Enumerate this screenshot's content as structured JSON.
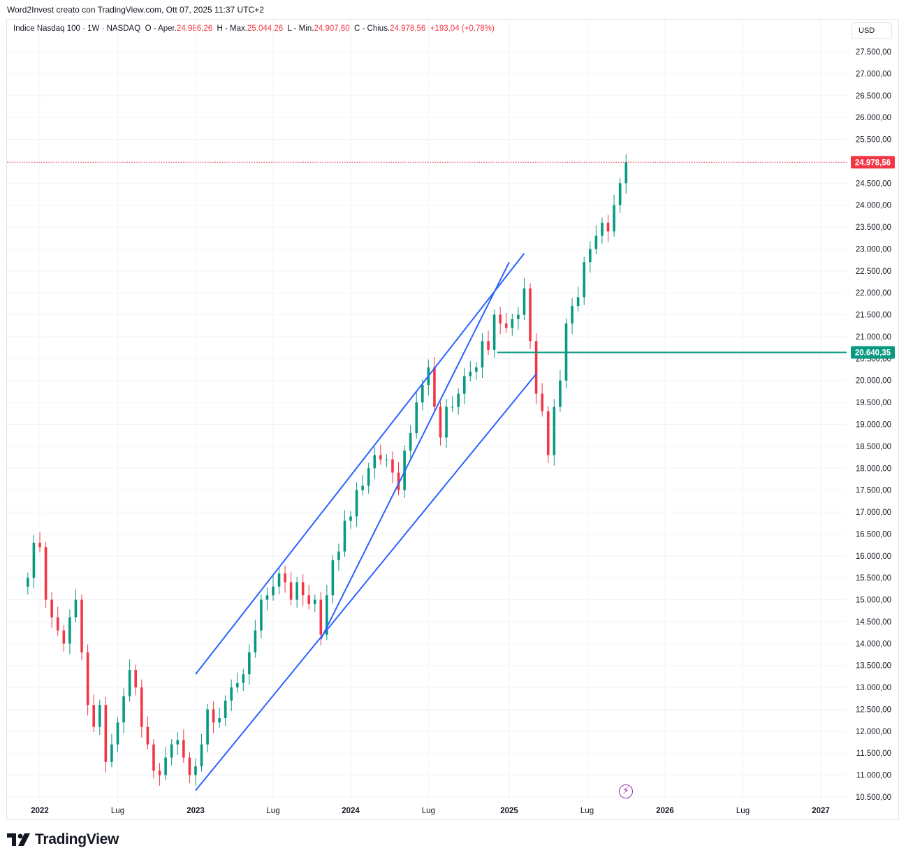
{
  "caption": "Word2Invest creato con TradingView.com, Ott 07, 2025 11:37 UTC+2",
  "legend": {
    "symbol": "Indice Nasdaq 100 · 1W · NASDAQ",
    "open_label": "O - Aper.",
    "open_value": "24.986,26",
    "high_label": "H - Max.",
    "high_value": "25.044,26",
    "low_label": "L - Min.",
    "low_value": "24.907,60",
    "close_label": "C - Chius.",
    "close_value": "24.978,56",
    "change": "+193,04 (+0,78%)"
  },
  "currency": "USD",
  "brand": "TradingView",
  "colors": {
    "up": "#089981",
    "down": "#f23645",
    "trendline": "#2962ff",
    "level": "#089981",
    "grid": "#f0f3fa"
  },
  "chart_data": {
    "type": "candlestick",
    "symbol": "Indice Nasdaq 100",
    "timeframe": "1W",
    "currency": "USD",
    "ylim": [
      10400,
      27800
    ],
    "y_ticks": [
      "10.500,00",
      "11.000,00",
      "11.500,00",
      "12.000,00",
      "12.500,00",
      "13.000,00",
      "13.500,00",
      "14.000,00",
      "14.500,00",
      "15.000,00",
      "15.500,00",
      "16.000,00",
      "16.500,00",
      "17.000,00",
      "17.500,00",
      "18.000,00",
      "18.500,00",
      "19.000,00",
      "19.500,00",
      "20.000,00",
      "20.500,00",
      "21.000,00",
      "21.500,00",
      "22.000,00",
      "22.500,00",
      "23.000,00",
      "23.500,00",
      "24.000,00",
      "24.500,00",
      "25.000,00",
      "25.500,00",
      "26.000,00",
      "26.500,00",
      "27.000,00",
      "27.500,00"
    ],
    "x_ticks": [
      "2022",
      "Lug",
      "2023",
      "Lug",
      "2024",
      "Lug",
      "2025",
      "Lug",
      "2026",
      "Lug",
      "2027"
    ],
    "last_price": {
      "value": 24978.56,
      "label": "24.978,56"
    },
    "horizontal_level": {
      "value": 20640.35,
      "label": "20.640,35",
      "from_date": "2024-12-09"
    },
    "trendlines": [
      {
        "from": [
          "2023-01-02",
          13300
        ],
        "to": [
          "2025-02-10",
          22900
        ]
      },
      {
        "from": [
          "2023-01-02",
          10650
        ],
        "to": [
          "2025-03-10",
          20150
        ]
      },
      {
        "from": [
          "2023-10-23",
          14100
        ],
        "to": [
          "2025-01-06",
          22700
        ]
      }
    ],
    "candles_weekly_close_approx": [
      [
        "2021-12-06",
        15500
      ],
      [
        "2021-12-20",
        16300
      ],
      [
        "2022-01-03",
        16200
      ],
      [
        "2022-01-17",
        15000
      ],
      [
        "2022-01-31",
        14600
      ],
      [
        "2022-02-14",
        14300
      ],
      [
        "2022-02-28",
        14000
      ],
      [
        "2022-03-14",
        14600
      ],
      [
        "2022-03-28",
        15000
      ],
      [
        "2022-04-11",
        13800
      ],
      [
        "2022-04-25",
        12600
      ],
      [
        "2022-05-09",
        12100
      ],
      [
        "2022-05-23",
        12600
      ],
      [
        "2022-06-06",
        11300
      ],
      [
        "2022-06-20",
        11700
      ],
      [
        "2022-07-04",
        12200
      ],
      [
        "2022-07-18",
        12800
      ],
      [
        "2022-08-01",
        13400
      ],
      [
        "2022-08-15",
        13000
      ],
      [
        "2022-08-29",
        12100
      ],
      [
        "2022-09-12",
        11700
      ],
      [
        "2022-09-26",
        11100
      ],
      [
        "2022-10-10",
        11000
      ],
      [
        "2022-10-24",
        11400
      ],
      [
        "2022-11-07",
        11700
      ],
      [
        "2022-11-21",
        11800
      ],
      [
        "2022-12-05",
        11400
      ],
      [
        "2022-12-19",
        11000
      ],
      [
        "2023-01-02",
        11200
      ],
      [
        "2023-01-16",
        11700
      ],
      [
        "2023-01-30",
        12500
      ],
      [
        "2023-02-13",
        12200
      ],
      [
        "2023-02-27",
        12300
      ],
      [
        "2023-03-13",
        12700
      ],
      [
        "2023-03-27",
        13000
      ],
      [
        "2023-04-10",
        13100
      ],
      [
        "2023-04-24",
        13300
      ],
      [
        "2023-05-08",
        13800
      ],
      [
        "2023-05-22",
        14300
      ],
      [
        "2023-06-05",
        15000
      ],
      [
        "2023-06-19",
        15100
      ],
      [
        "2023-07-03",
        15300
      ],
      [
        "2023-07-17",
        15600
      ],
      [
        "2023-07-31",
        15400
      ],
      [
        "2023-08-14",
        15000
      ],
      [
        "2023-08-28",
        15400
      ],
      [
        "2023-09-11",
        15100
      ],
      [
        "2023-09-25",
        14900
      ],
      [
        "2023-10-09",
        15000
      ],
      [
        "2023-10-23",
        14200
      ],
      [
        "2023-11-06",
        15100
      ],
      [
        "2023-11-20",
        15900
      ],
      [
        "2023-12-04",
        16100
      ],
      [
        "2023-12-18",
        16800
      ],
      [
        "2024-01-01",
        16900
      ],
      [
        "2024-01-15",
        17500
      ],
      [
        "2024-01-29",
        17600
      ],
      [
        "2024-02-12",
        18000
      ],
      [
        "2024-02-26",
        18300
      ],
      [
        "2024-03-11",
        18200
      ],
      [
        "2024-03-25",
        18200
      ],
      [
        "2024-04-08",
        17900
      ],
      [
        "2024-04-22",
        17500
      ],
      [
        "2024-05-06",
        18400
      ],
      [
        "2024-05-20",
        18800
      ],
      [
        "2024-06-03",
        19500
      ],
      [
        "2024-06-17",
        19900
      ],
      [
        "2024-07-01",
        20300
      ],
      [
        "2024-07-15",
        19400
      ],
      [
        "2024-07-29",
        18700
      ],
      [
        "2024-08-12",
        19400
      ],
      [
        "2024-08-26",
        19400
      ],
      [
        "2024-09-09",
        19700
      ],
      [
        "2024-09-23",
        20100
      ],
      [
        "2024-10-07",
        20200
      ],
      [
        "2024-10-21",
        20300
      ],
      [
        "2024-11-04",
        20900
      ],
      [
        "2024-11-18",
        20700
      ],
      [
        "2024-12-02",
        21500
      ],
      [
        "2024-12-16",
        21300
      ],
      [
        "2024-12-30",
        21200
      ],
      [
        "2025-01-13",
        21400
      ],
      [
        "2025-01-27",
        21500
      ],
      [
        "2025-02-10",
        22100
      ],
      [
        "2025-02-24",
        20900
      ],
      [
        "2025-03-10",
        19700
      ],
      [
        "2025-03-24",
        19300
      ],
      [
        "2025-04-07",
        18300
      ],
      [
        "2025-04-21",
        19400
      ],
      [
        "2025-05-05",
        20000
      ],
      [
        "2025-05-19",
        21300
      ],
      [
        "2025-06-02",
        21700
      ],
      [
        "2025-06-16",
        21900
      ],
      [
        "2025-06-30",
        22700
      ],
      [
        "2025-07-14",
        23000
      ],
      [
        "2025-07-28",
        23300
      ],
      [
        "2025-08-11",
        23600
      ],
      [
        "2025-08-25",
        23400
      ],
      [
        "2025-09-08",
        24000
      ],
      [
        "2025-09-22",
        24500
      ],
      [
        "2025-10-06",
        24978.56
      ]
    ]
  }
}
